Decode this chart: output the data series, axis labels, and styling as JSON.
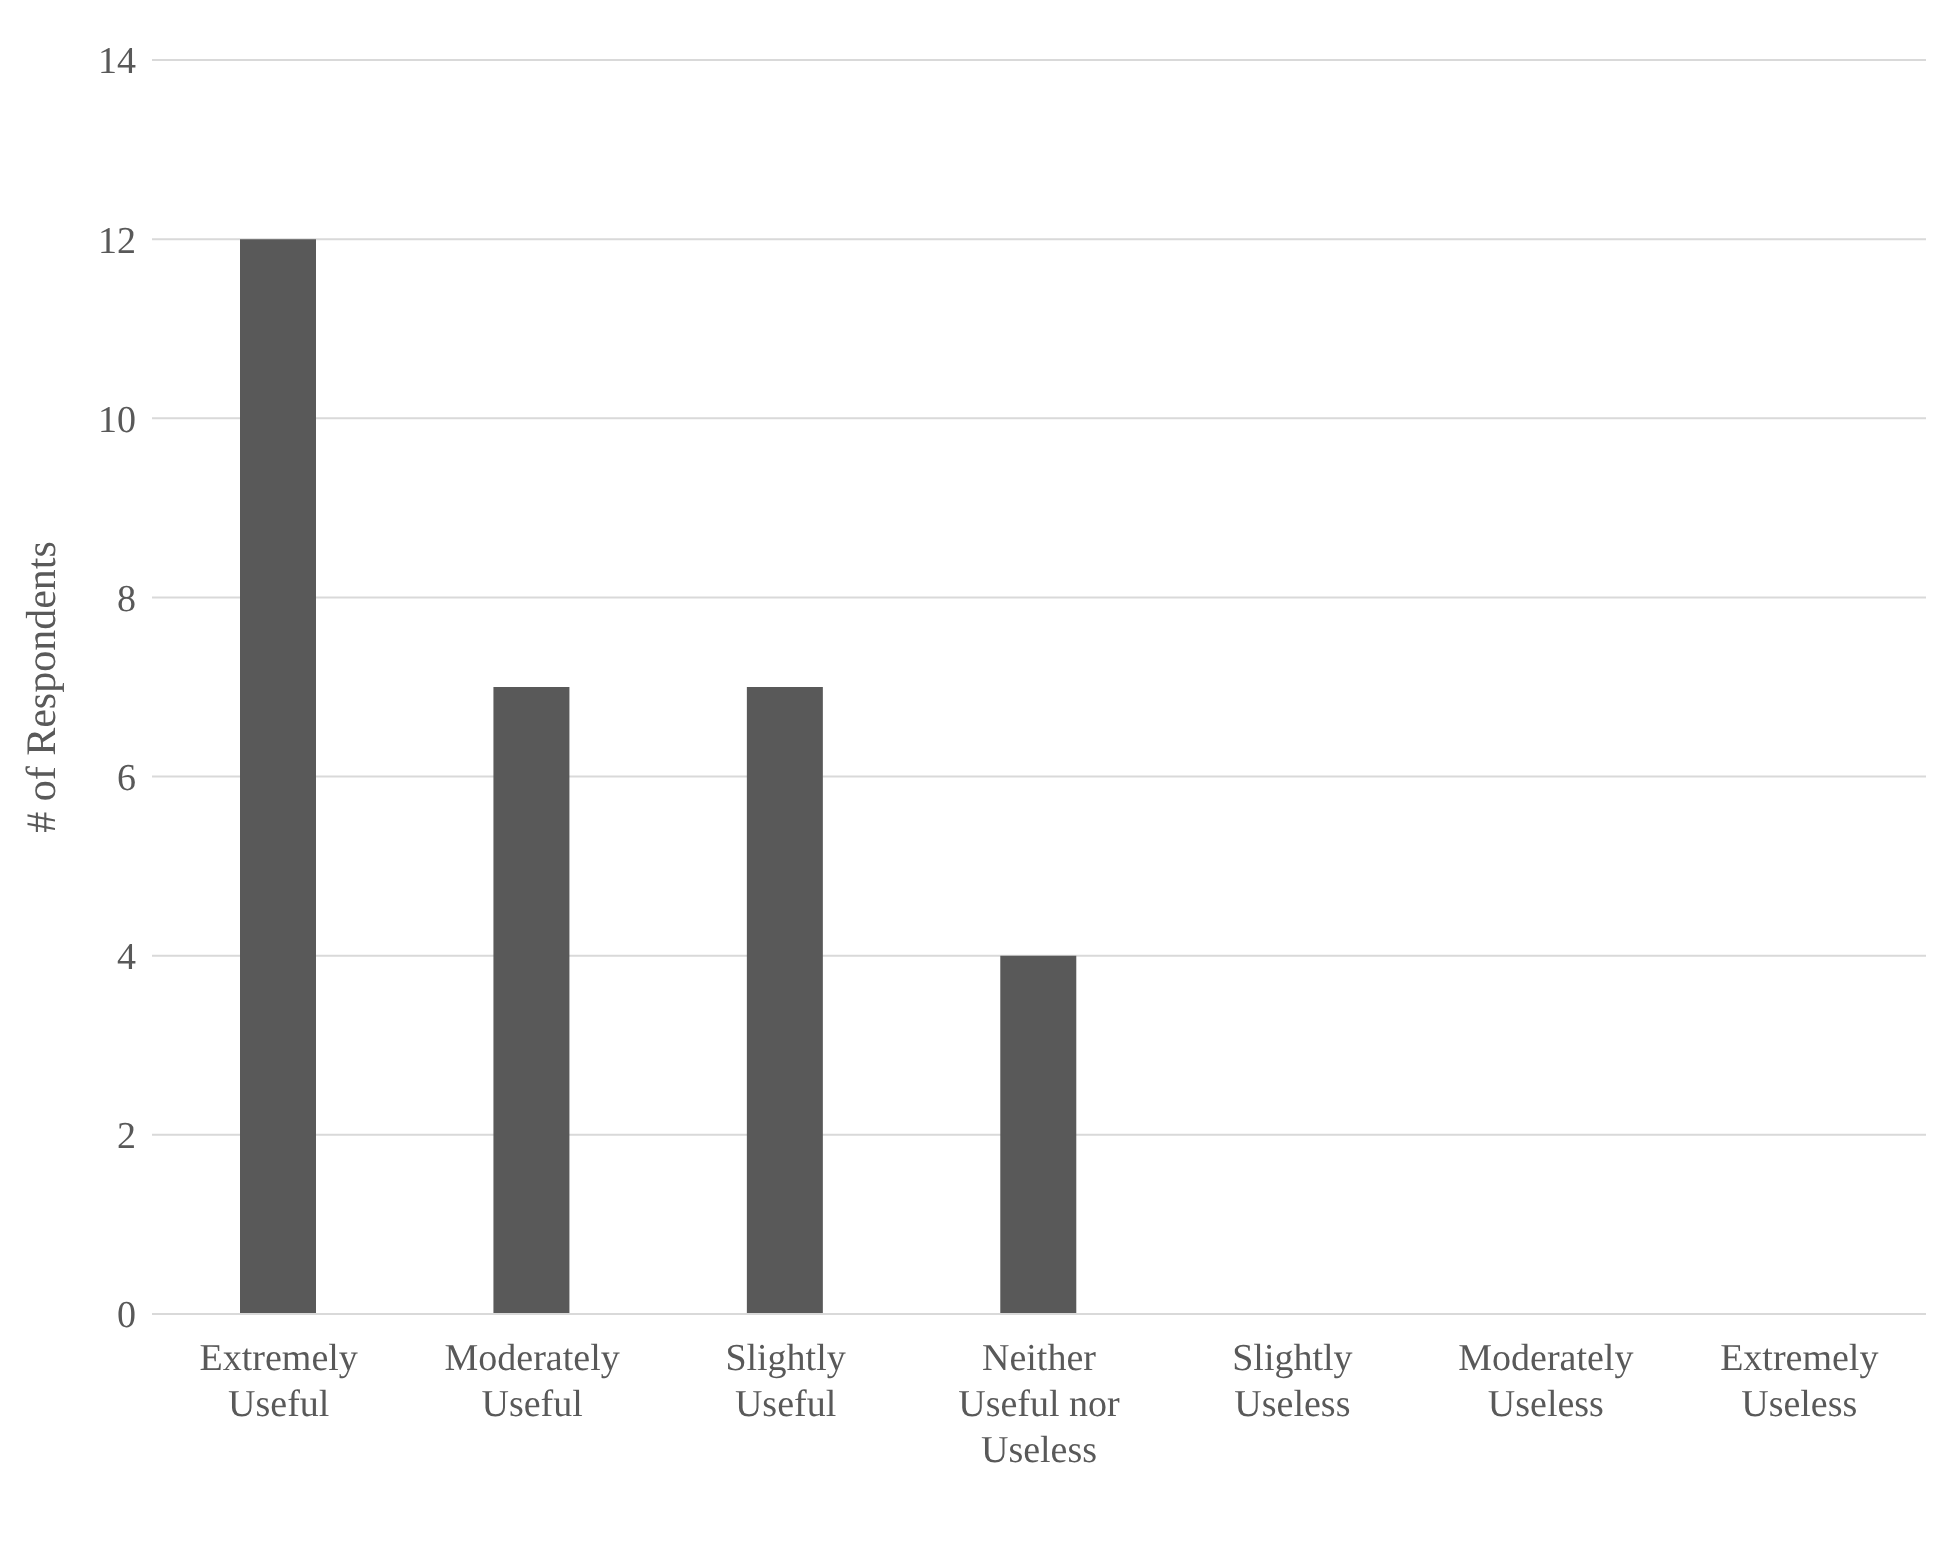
{
  "chart_data": {
    "type": "bar",
    "ylabel": "# of Respondents",
    "categories": [
      "Extremely Useful",
      "Moderately Useful",
      "Slightly Useful",
      "Neither Useful nor Useless",
      "Slightly Useless",
      "Moderately Useless",
      "Extremely Useless"
    ],
    "values": [
      12,
      7,
      7,
      4,
      0,
      0,
      0
    ],
    "color": "#595959",
    "ylim": [
      0,
      14
    ],
    "yticks": [
      0,
      2,
      4,
      6,
      8,
      10,
      12,
      14
    ],
    "grid": "y",
    "legend": false
  }
}
